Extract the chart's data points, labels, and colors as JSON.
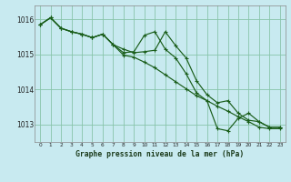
{
  "title": "Graphe pression niveau de la mer (hPa)",
  "background_color": "#c8eaf0",
  "grid_color": "#88c4aa",
  "line_color": "#1a5e1a",
  "xlim": [
    -0.5,
    23.5
  ],
  "ylim": [
    1012.5,
    1016.4
  ],
  "yticks": [
    1013,
    1014,
    1015,
    1016
  ],
  "xticks": [
    0,
    1,
    2,
    3,
    4,
    5,
    6,
    7,
    8,
    9,
    10,
    11,
    12,
    13,
    14,
    15,
    16,
    17,
    18,
    19,
    20,
    21,
    22,
    23
  ],
  "series1_y": [
    1015.85,
    1016.05,
    1015.75,
    1015.65,
    1015.58,
    1015.48,
    1015.58,
    1015.28,
    1015.05,
    1015.08,
    1015.55,
    1015.65,
    1015.15,
    1014.9,
    1014.45,
    1013.9,
    1013.68,
    1012.88,
    1012.82,
    1013.18,
    1013.32,
    1013.08,
    1012.92,
    1012.92
  ],
  "series2_y": [
    1015.85,
    1016.05,
    1015.75,
    1015.65,
    1015.58,
    1015.48,
    1015.58,
    1015.28,
    1015.15,
    1015.05,
    1015.08,
    1015.12,
    1015.65,
    1015.25,
    1014.9,
    1014.25,
    1013.85,
    1013.62,
    1013.68,
    1013.32,
    1013.12,
    1013.08,
    1012.92,
    1012.92
  ],
  "series3_y": [
    1015.85,
    1016.05,
    1015.75,
    1015.65,
    1015.58,
    1015.48,
    1015.58,
    1015.28,
    1014.98,
    1014.92,
    1014.78,
    1014.62,
    1014.42,
    1014.22,
    1014.02,
    1013.82,
    1013.68,
    1013.52,
    1013.38,
    1013.22,
    1013.08,
    1012.92,
    1012.88,
    1012.88
  ]
}
